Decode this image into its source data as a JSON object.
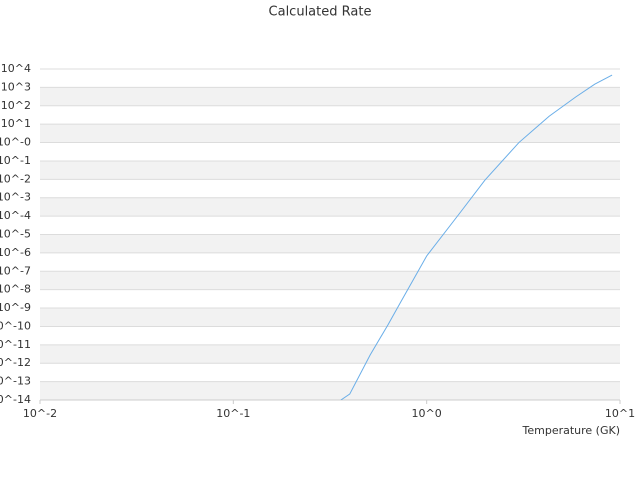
{
  "chart_data": {
    "type": "line",
    "title": "Calculated Rate",
    "x_label": "Temperature (GK)",
    "xscale": "log",
    "yscale": "log",
    "xlim": [
      0.01,
      10
    ],
    "ylim": [
      1e-14,
      10000
    ],
    "xticks": [
      {
        "value": 0.01,
        "label": "10^-2"
      },
      {
        "value": 0.1,
        "label": "10^-1"
      },
      {
        "value": 1,
        "label": "10^0"
      },
      {
        "value": 10,
        "label": "10^1"
      }
    ],
    "yticks": [
      {
        "value": 1e-14,
        "label": "10^-14"
      },
      {
        "value": 1e-13,
        "label": "10^-13"
      },
      {
        "value": 1e-12,
        "label": "10^-12"
      },
      {
        "value": 1e-11,
        "label": "10^-11"
      },
      {
        "value": 1e-10,
        "label": "10^-10"
      },
      {
        "value": 1e-09,
        "label": "10^-9"
      },
      {
        "value": 1e-08,
        "label": "10^-8"
      },
      {
        "value": 1e-07,
        "label": "10^-7"
      },
      {
        "value": 1e-06,
        "label": "10^-6"
      },
      {
        "value": 1e-05,
        "label": "10^-5"
      },
      {
        "value": 0.0001,
        "label": "10^-4"
      },
      {
        "value": 0.001,
        "label": "10^-3"
      },
      {
        "value": 0.01,
        "label": "10^-2"
      },
      {
        "value": 0.1,
        "label": "10^-1"
      },
      {
        "value": 1,
        "label": "10^-0"
      },
      {
        "value": 10,
        "label": "10^1"
      },
      {
        "value": 100,
        "label": "10^2"
      },
      {
        "value": 1000,
        "label": "10^3"
      },
      {
        "value": 10000,
        "label": "10^4"
      }
    ],
    "grid": true,
    "band_color": "#f2f2f2",
    "x": [
      0.36,
      0.4,
      0.51,
      0.63,
      0.73,
      1.0,
      1.5,
      2.0,
      3.0,
      4.3,
      5.9,
      7.4,
      9.1
    ],
    "series": [
      {
        "color": "#6aaee8",
        "values": [
          1e-14,
          2.1e-14,
          2.8e-12,
          1.2e-10,
          1.9e-09,
          6.8e-07,
          0.00017,
          0.009,
          1,
          27,
          300,
          1500,
          4700
        ]
      }
    ]
  }
}
